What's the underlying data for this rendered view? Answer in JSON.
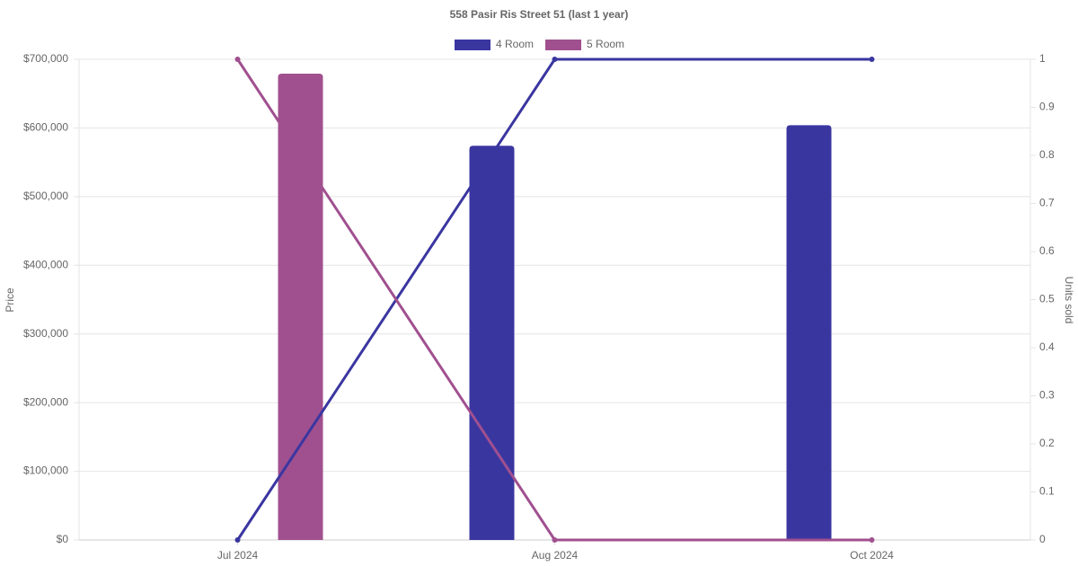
{
  "chart_data": {
    "type": "bar",
    "title": "558 Pasir Ris Street 51 (last 1 year)",
    "y_label": "Price",
    "y2_label": "Units sold",
    "categories": [
      "Jul 2024",
      "Aug 2024",
      "Oct 2024"
    ],
    "series": [
      {
        "name": "4 Room",
        "color": "#3a36a0",
        "values": [
          null,
          574000,
          604000
        ],
        "units": [
          0,
          1,
          1
        ]
      },
      {
        "name": "5 Room",
        "color": "#a0508f",
        "values": [
          679000,
          null,
          null
        ],
        "units": [
          1,
          0,
          0
        ]
      }
    ],
    "ylim": [
      0,
      700000
    ],
    "yticks": [
      {
        "value": 0,
        "label": "$0"
      },
      {
        "value": 100000,
        "label": "$100,000"
      },
      {
        "value": 200000,
        "label": "$200,000"
      },
      {
        "value": 300000,
        "label": "$300,000"
      },
      {
        "value": 400000,
        "label": "$400,000"
      },
      {
        "value": 500000,
        "label": "$500,000"
      },
      {
        "value": 600000,
        "label": "$600,000"
      },
      {
        "value": 700000,
        "label": "$700,000"
      }
    ],
    "y2lim": [
      0,
      1
    ],
    "y2ticks": [
      0,
      0.1,
      0.2,
      0.3,
      0.4,
      0.5,
      0.6,
      0.7,
      0.8,
      0.9,
      1
    ],
    "grid": true
  }
}
